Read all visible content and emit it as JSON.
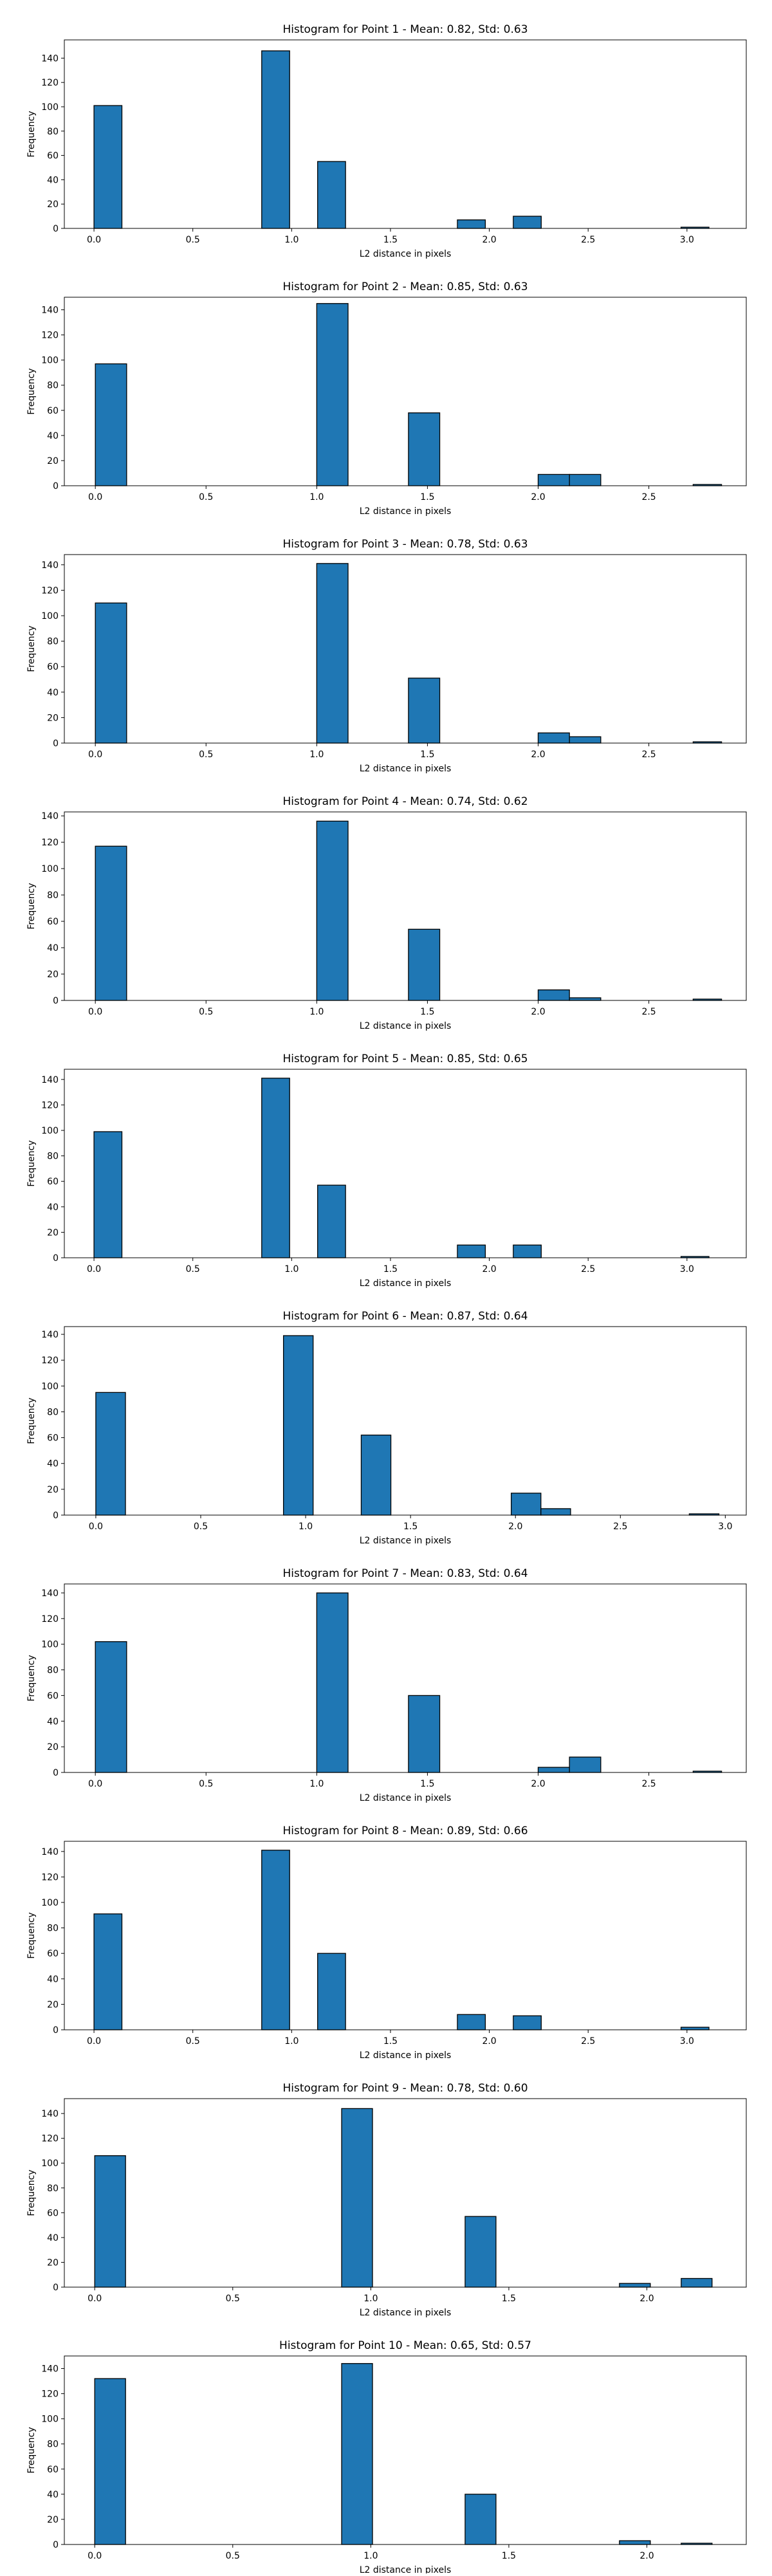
{
  "chart_data": [
    {
      "type": "bar",
      "title": "Histogram for Point 1 - Mean: 0.82, Std: 0.63",
      "xlabel": "L2 distance in pixels",
      "ylabel": "Frequency",
      "xlim": [
        -0.15,
        3.3
      ],
      "ylim": [
        0,
        155
      ],
      "xticks": [
        0.0,
        0.5,
        1.0,
        1.5,
        2.0,
        2.5,
        3.0
      ],
      "xtick_labels": [
        "0.0",
        "0.5",
        "1.0",
        "1.5",
        "2.0",
        "2.5",
        "3.0"
      ],
      "yticks": [
        0,
        20,
        40,
        60,
        80,
        100,
        120,
        140
      ],
      "ytick_labels": [
        "0",
        "20",
        "40",
        "60",
        "80",
        "100",
        "120",
        "140"
      ],
      "bins": [
        [
          0.0,
          0.1414,
          101
        ],
        [
          0.8485,
          0.9899,
          146
        ],
        [
          1.1314,
          1.2728,
          55
        ],
        [
          1.8385,
          1.9799,
          7
        ],
        [
          2.1213,
          2.2627,
          10
        ],
        [
          2.9698,
          3.1113,
          1
        ]
      ],
      "color": "#1f77b4",
      "edge_color": "#000000"
    },
    {
      "type": "bar",
      "title": "Histogram for Point 2 - Mean: 0.85, Std: 0.63",
      "xlabel": "L2 distance in pixels",
      "ylabel": "Frequency",
      "xlim": [
        -0.14,
        2.94
      ],
      "ylim": [
        0,
        150
      ],
      "xticks": [
        0.0,
        0.5,
        1.0,
        1.5,
        2.0,
        2.5
      ],
      "xtick_labels": [
        "0.0",
        "0.5",
        "1.0",
        "1.5",
        "2.0",
        "2.5"
      ],
      "yticks": [
        0,
        20,
        40,
        60,
        80,
        100,
        120,
        140
      ],
      "ytick_labels": [
        "0",
        "20",
        "40",
        "60",
        "80",
        "100",
        "120",
        "140"
      ],
      "bins": [
        [
          0.0,
          0.1414,
          97
        ],
        [
          1.0,
          1.1414,
          145
        ],
        [
          1.4142,
          1.5556,
          58
        ],
        [
          2.0,
          2.1414,
          9
        ],
        [
          2.1414,
          2.2828,
          9
        ],
        [
          2.7,
          2.8284,
          1
        ]
      ],
      "color": "#1f77b4",
      "edge_color": "#000000"
    },
    {
      "type": "bar",
      "title": "Histogram for Point 3 - Mean: 0.78, Std: 0.63",
      "xlabel": "L2 distance in pixels",
      "ylabel": "Frequency",
      "xlim": [
        -0.14,
        2.94
      ],
      "ylim": [
        0,
        148
      ],
      "xticks": [
        0.0,
        0.5,
        1.0,
        1.5,
        2.0,
        2.5
      ],
      "xtick_labels": [
        "0.0",
        "0.5",
        "1.0",
        "1.5",
        "2.0",
        "2.5"
      ],
      "yticks": [
        0,
        20,
        40,
        60,
        80,
        100,
        120,
        140
      ],
      "ytick_labels": [
        "0",
        "20",
        "40",
        "60",
        "80",
        "100",
        "120",
        "140"
      ],
      "bins": [
        [
          0.0,
          0.1414,
          110
        ],
        [
          1.0,
          1.1414,
          141
        ],
        [
          1.4142,
          1.5556,
          51
        ],
        [
          2.0,
          2.1414,
          8
        ],
        [
          2.1414,
          2.2828,
          5
        ],
        [
          2.7,
          2.8284,
          1
        ]
      ],
      "color": "#1f77b4",
      "edge_color": "#000000"
    },
    {
      "type": "bar",
      "title": "Histogram for Point 4 - Mean: 0.74, Std: 0.62",
      "xlabel": "L2 distance in pixels",
      "ylabel": "Frequency",
      "xlim": [
        -0.14,
        2.94
      ],
      "ylim": [
        0,
        143
      ],
      "xticks": [
        0.0,
        0.5,
        1.0,
        1.5,
        2.0,
        2.5
      ],
      "xtick_labels": [
        "0.0",
        "0.5",
        "1.0",
        "1.5",
        "2.0",
        "2.5"
      ],
      "yticks": [
        0,
        20,
        40,
        60,
        80,
        100,
        120,
        140
      ],
      "ytick_labels": [
        "0",
        "20",
        "40",
        "60",
        "80",
        "100",
        "120",
        "140"
      ],
      "bins": [
        [
          0.0,
          0.1414,
          117
        ],
        [
          1.0,
          1.1414,
          136
        ],
        [
          1.4142,
          1.5556,
          54
        ],
        [
          2.0,
          2.1414,
          8
        ],
        [
          2.1414,
          2.2828,
          2
        ],
        [
          2.7,
          2.8284,
          1
        ]
      ],
      "color": "#1f77b4",
      "edge_color": "#000000"
    },
    {
      "type": "bar",
      "title": "Histogram for Point 5 - Mean: 0.85, Std: 0.65",
      "xlabel": "L2 distance in pixels",
      "ylabel": "Frequency",
      "xlim": [
        -0.15,
        3.3
      ],
      "ylim": [
        0,
        148
      ],
      "xticks": [
        0.0,
        0.5,
        1.0,
        1.5,
        2.0,
        2.5,
        3.0
      ],
      "xtick_labels": [
        "0.0",
        "0.5",
        "1.0",
        "1.5",
        "2.0",
        "2.5",
        "3.0"
      ],
      "yticks": [
        0,
        20,
        40,
        60,
        80,
        100,
        120,
        140
      ],
      "ytick_labels": [
        "0",
        "20",
        "40",
        "60",
        "80",
        "100",
        "120",
        "140"
      ],
      "bins": [
        [
          0.0,
          0.1414,
          99
        ],
        [
          0.8485,
          0.9899,
          141
        ],
        [
          1.1314,
          1.2728,
          57
        ],
        [
          1.8385,
          1.9799,
          10
        ],
        [
          2.1213,
          2.2627,
          10
        ],
        [
          2.9698,
          3.1113,
          1
        ]
      ],
      "color": "#1f77b4",
      "edge_color": "#000000"
    },
    {
      "type": "bar",
      "title": "Histogram for Point 6 - Mean: 0.87, Std: 0.64",
      "xlabel": "L2 distance in pixels",
      "ylabel": "Frequency",
      "xlim": [
        -0.15,
        3.1
      ],
      "ylim": [
        0,
        146
      ],
      "xticks": [
        0.0,
        0.5,
        1.0,
        1.5,
        2.0,
        2.5,
        3.0
      ],
      "xtick_labels": [
        "0.0",
        "0.5",
        "1.0",
        "1.5",
        "2.0",
        "2.5",
        "3.0"
      ],
      "yticks": [
        0,
        20,
        40,
        60,
        80,
        100,
        120,
        140
      ],
      "ytick_labels": [
        "0",
        "20",
        "40",
        "60",
        "80",
        "100",
        "120",
        "140"
      ],
      "bins": [
        [
          0.0,
          0.1414,
          95
        ],
        [
          0.8944,
          1.0358,
          139
        ],
        [
          1.2649,
          1.4063,
          62
        ],
        [
          1.9799,
          2.1213,
          17
        ],
        [
          2.1213,
          2.2627,
          5
        ],
        [
          2.8284,
          2.9698,
          1
        ]
      ],
      "color": "#1f77b4",
      "edge_color": "#000000"
    },
    {
      "type": "bar",
      "title": "Histogram for Point 7 - Mean: 0.83, Std: 0.64",
      "xlabel": "L2 distance in pixels",
      "ylabel": "Frequency",
      "xlim": [
        -0.14,
        2.94
      ],
      "ylim": [
        0,
        147
      ],
      "xticks": [
        0.0,
        0.5,
        1.0,
        1.5,
        2.0,
        2.5
      ],
      "xtick_labels": [
        "0.0",
        "0.5",
        "1.0",
        "1.5",
        "2.0",
        "2.5"
      ],
      "yticks": [
        0,
        20,
        40,
        60,
        80,
        100,
        120,
        140
      ],
      "ytick_labels": [
        "0",
        "20",
        "40",
        "60",
        "80",
        "100",
        "120",
        "140"
      ],
      "bins": [
        [
          0.0,
          0.1414,
          102
        ],
        [
          1.0,
          1.1414,
          140
        ],
        [
          1.4142,
          1.5556,
          60
        ],
        [
          2.0,
          2.1414,
          4
        ],
        [
          2.1414,
          2.2828,
          12
        ],
        [
          2.7,
          2.8284,
          1
        ]
      ],
      "color": "#1f77b4",
      "edge_color": "#000000"
    },
    {
      "type": "bar",
      "title": "Histogram for Point 8 - Mean: 0.89, Std: 0.66",
      "xlabel": "L2 distance in pixels",
      "ylabel": "Frequency",
      "xlim": [
        -0.15,
        3.3
      ],
      "ylim": [
        0,
        148
      ],
      "xticks": [
        0.0,
        0.5,
        1.0,
        1.5,
        2.0,
        2.5,
        3.0
      ],
      "xtick_labels": [
        "0.0",
        "0.5",
        "1.0",
        "1.5",
        "2.0",
        "2.5",
        "3.0"
      ],
      "yticks": [
        0,
        20,
        40,
        60,
        80,
        100,
        120,
        140
      ],
      "ytick_labels": [
        "0",
        "20",
        "40",
        "60",
        "80",
        "100",
        "120",
        "140"
      ],
      "bins": [
        [
          0.0,
          0.1414,
          91
        ],
        [
          0.8485,
          0.9899,
          141
        ],
        [
          1.1314,
          1.2728,
          60
        ],
        [
          1.8385,
          1.9799,
          12
        ],
        [
          2.1213,
          2.2627,
          11
        ],
        [
          2.9698,
          3.1113,
          2
        ]
      ],
      "color": "#1f77b4",
      "edge_color": "#000000"
    },
    {
      "type": "bar",
      "title": "Histogram for Point 9 - Mean: 0.78, Std: 0.60",
      "xlabel": "L2 distance in pixels",
      "ylabel": "Frequency",
      "xlim": [
        -0.11,
        2.36
      ],
      "ylim": [
        0,
        152
      ],
      "xticks": [
        0.0,
        0.5,
        1.0,
        1.5,
        2.0
      ],
      "xtick_labels": [
        "0.0",
        "0.5",
        "1.0",
        "1.5",
        "2.0"
      ],
      "yticks": [
        0,
        20,
        40,
        60,
        80,
        100,
        120,
        140
      ],
      "ytick_labels": [
        "0",
        "20",
        "40",
        "60",
        "80",
        "100",
        "120",
        "140"
      ],
      "bins": [
        [
          0.0,
          0.1118,
          106
        ],
        [
          0.8944,
          1.0062,
          144
        ],
        [
          1.3416,
          1.4534,
          57
        ],
        [
          1.9006,
          2.0125,
          3
        ],
        [
          2.1243,
          2.2361,
          7
        ]
      ],
      "color": "#1f77b4",
      "edge_color": "#000000"
    },
    {
      "type": "bar",
      "title": "Histogram for Point 10 - Mean: 0.65, Std: 0.57",
      "xlabel": "L2 distance in pixels",
      "ylabel": "Frequency",
      "xlim": [
        -0.11,
        2.36
      ],
      "ylim": [
        0,
        150
      ],
      "xticks": [
        0.0,
        0.5,
        1.0,
        1.5,
        2.0
      ],
      "xtick_labels": [
        "0.0",
        "0.5",
        "1.0",
        "1.5",
        "2.0"
      ],
      "yticks": [
        0,
        20,
        40,
        60,
        80,
        100,
        120,
        140
      ],
      "ytick_labels": [
        "0",
        "20",
        "40",
        "60",
        "80",
        "100",
        "120",
        "140"
      ],
      "bins": [
        [
          0.0,
          0.1118,
          132
        ],
        [
          0.8944,
          1.0062,
          144
        ],
        [
          1.3416,
          1.4534,
          40
        ],
        [
          1.9006,
          2.0125,
          3
        ],
        [
          2.1243,
          2.2361,
          1
        ]
      ],
      "color": "#1f77b4",
      "edge_color": "#000000"
    }
  ]
}
